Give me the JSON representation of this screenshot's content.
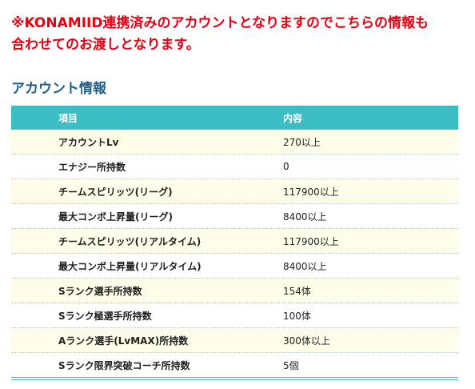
{
  "notice": {
    "line1": "※KONAMIID連携済みのアカウントとなりますのでこちらの情報も",
    "line2": "合わせてのお渡しとなります。"
  },
  "section": {
    "title": "アカウント情報"
  },
  "table": {
    "headers": {
      "item": "項目",
      "content": "内容"
    },
    "rows": [
      {
        "label": "アカウントLv",
        "value": "270以上"
      },
      {
        "label": "エナジー所持数",
        "value": "0"
      },
      {
        "label": "チームスピリッツ(リーグ)",
        "value": "117900以上"
      },
      {
        "label": "最大コンボ上昇量(リーグ)",
        "value": "8400以上"
      },
      {
        "label": "チームスピリッツ(リアルタイム)",
        "value": "117900以上"
      },
      {
        "label": "最大コンボ上昇量(リアルタイム)",
        "value": "8400以上"
      },
      {
        "label": "Sランク選手所持数",
        "value": "154体"
      },
      {
        "label": "Sランク極選手所持数",
        "value": "100体"
      },
      {
        "label": "Aランク選手(LvMAX)所持数",
        "value": "300体以上"
      },
      {
        "label": "Sランク限界突破コーチ所持数",
        "value": "5個"
      }
    ]
  },
  "colors": {
    "notice": "#e60012",
    "section_title": "#1f5f8b",
    "header_bg": "#3cbcc3",
    "row_alt_bg": "#fdfde9"
  }
}
